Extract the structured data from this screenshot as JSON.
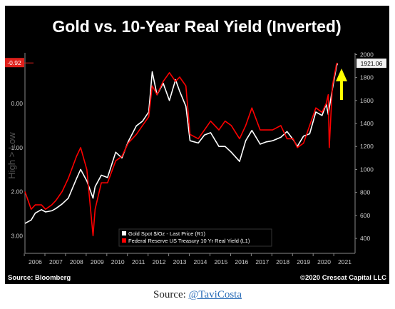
{
  "chart_data": {
    "type": "line",
    "title": "Gold vs. 10-Year Real Yield (Inverted)",
    "x_ticks": [
      "2006",
      "2007",
      "2008",
      "2009",
      "2010",
      "2011",
      "2012",
      "2013",
      "2014",
      "2015",
      "2016",
      "2017",
      "2018",
      "2019",
      "2020",
      "2021"
    ],
    "xlim": [
      2005.5,
      2021.5
    ],
    "left_axis": {
      "label": "High > Low",
      "ticks": [
        "0.00",
        "1.00",
        "2.00",
        "3.00"
      ],
      "ylim": [
        -1.15,
        3.4
      ],
      "inverted": true,
      "last_value_label": "-0.92"
    },
    "right_axis": {
      "ticks": [
        "400",
        "600",
        "800",
        "1000",
        "1200",
        "1400",
        "1600",
        "1800",
        "2000"
      ],
      "ylim": [
        270,
        2015
      ],
      "last_value_label": "1921.06"
    },
    "series": [
      {
        "name": "Gold Spot $/Oz - Last Price (R1)",
        "axis": "right",
        "color": "#ffffff",
        "x": [
          2005.5,
          2005.8,
          2006.0,
          2006.3,
          2006.5,
          2006.8,
          2007.0,
          2007.3,
          2007.6,
          2008.0,
          2008.2,
          2008.5,
          2008.8,
          2008.9,
          2009.2,
          2009.5,
          2009.9,
          2010.2,
          2010.5,
          2010.9,
          2011.2,
          2011.5,
          2011.67,
          2011.9,
          2012.2,
          2012.5,
          2012.8,
          2013.0,
          2013.3,
          2013.5,
          2013.9,
          2014.2,
          2014.5,
          2014.9,
          2015.2,
          2015.5,
          2015.9,
          2016.2,
          2016.5,
          2016.9,
          2017.2,
          2017.5,
          2017.9,
          2018.2,
          2018.5,
          2018.7,
          2019.0,
          2019.3,
          2019.6,
          2019.9,
          2020.1,
          2020.2,
          2020.4,
          2020.6,
          2020.65
        ],
        "values": [
          530,
          560,
          620,
          650,
          630,
          640,
          660,
          700,
          750,
          920,
          1000,
          900,
          750,
          850,
          950,
          930,
          1150,
          1100,
          1240,
          1380,
          1420,
          1500,
          1850,
          1650,
          1750,
          1600,
          1780,
          1680,
          1550,
          1250,
          1230,
          1300,
          1320,
          1200,
          1200,
          1150,
          1070,
          1250,
          1340,
          1220,
          1240,
          1250,
          1280,
          1330,
          1260,
          1200,
          1290,
          1310,
          1500,
          1470,
          1570,
          1480,
          1700,
          1900,
          1921
        ]
      },
      {
        "name": "Federal Reserve US Treasury 10 Yr Real Yield (L1)",
        "axis": "left",
        "color": "#ff0000",
        "x": [
          2005.5,
          2005.8,
          2006.0,
          2006.3,
          2006.5,
          2006.8,
          2007.0,
          2007.3,
          2007.6,
          2008.0,
          2008.2,
          2008.5,
          2008.8,
          2008.9,
          2009.2,
          2009.5,
          2009.9,
          2010.2,
          2010.5,
          2010.9,
          2011.2,
          2011.5,
          2011.67,
          2011.9,
          2012.2,
          2012.5,
          2012.8,
          2013.0,
          2013.3,
          2013.5,
          2013.9,
          2014.2,
          2014.5,
          2014.9,
          2015.2,
          2015.5,
          2015.9,
          2016.2,
          2016.5,
          2016.9,
          2017.2,
          2017.5,
          2017.9,
          2018.2,
          2018.5,
          2018.7,
          2019.0,
          2019.3,
          2019.6,
          2019.9,
          2020.1,
          2020.2,
          2020.25,
          2020.4,
          2020.6,
          2020.65
        ],
        "values": [
          2.0,
          2.4,
          2.3,
          2.3,
          2.4,
          2.3,
          2.2,
          2.0,
          1.7,
          1.2,
          1.0,
          1.5,
          3.0,
          2.4,
          1.8,
          1.8,
          1.3,
          1.2,
          0.9,
          0.7,
          0.5,
          0.3,
          -0.4,
          -0.2,
          -0.5,
          -0.7,
          -0.5,
          -0.6,
          -0.4,
          0.7,
          0.8,
          0.6,
          0.4,
          0.6,
          0.4,
          0.5,
          0.8,
          0.5,
          0.1,
          0.6,
          0.6,
          0.6,
          0.5,
          0.8,
          0.8,
          1.0,
          0.9,
          0.5,
          0.1,
          0.2,
          0.0,
          -0.2,
          1.0,
          -0.4,
          -0.9,
          -0.92
        ]
      }
    ],
    "annotations": [
      "Source: Bloomberg",
      "©2020 Crescat Capital LLC"
    ],
    "legend_position": "bottom-center",
    "grid": false,
    "background": "#000000",
    "arrow_color": "#ffff00"
  },
  "caption": {
    "prefix": "Source: ",
    "link_text": "@TaviCosta"
  }
}
